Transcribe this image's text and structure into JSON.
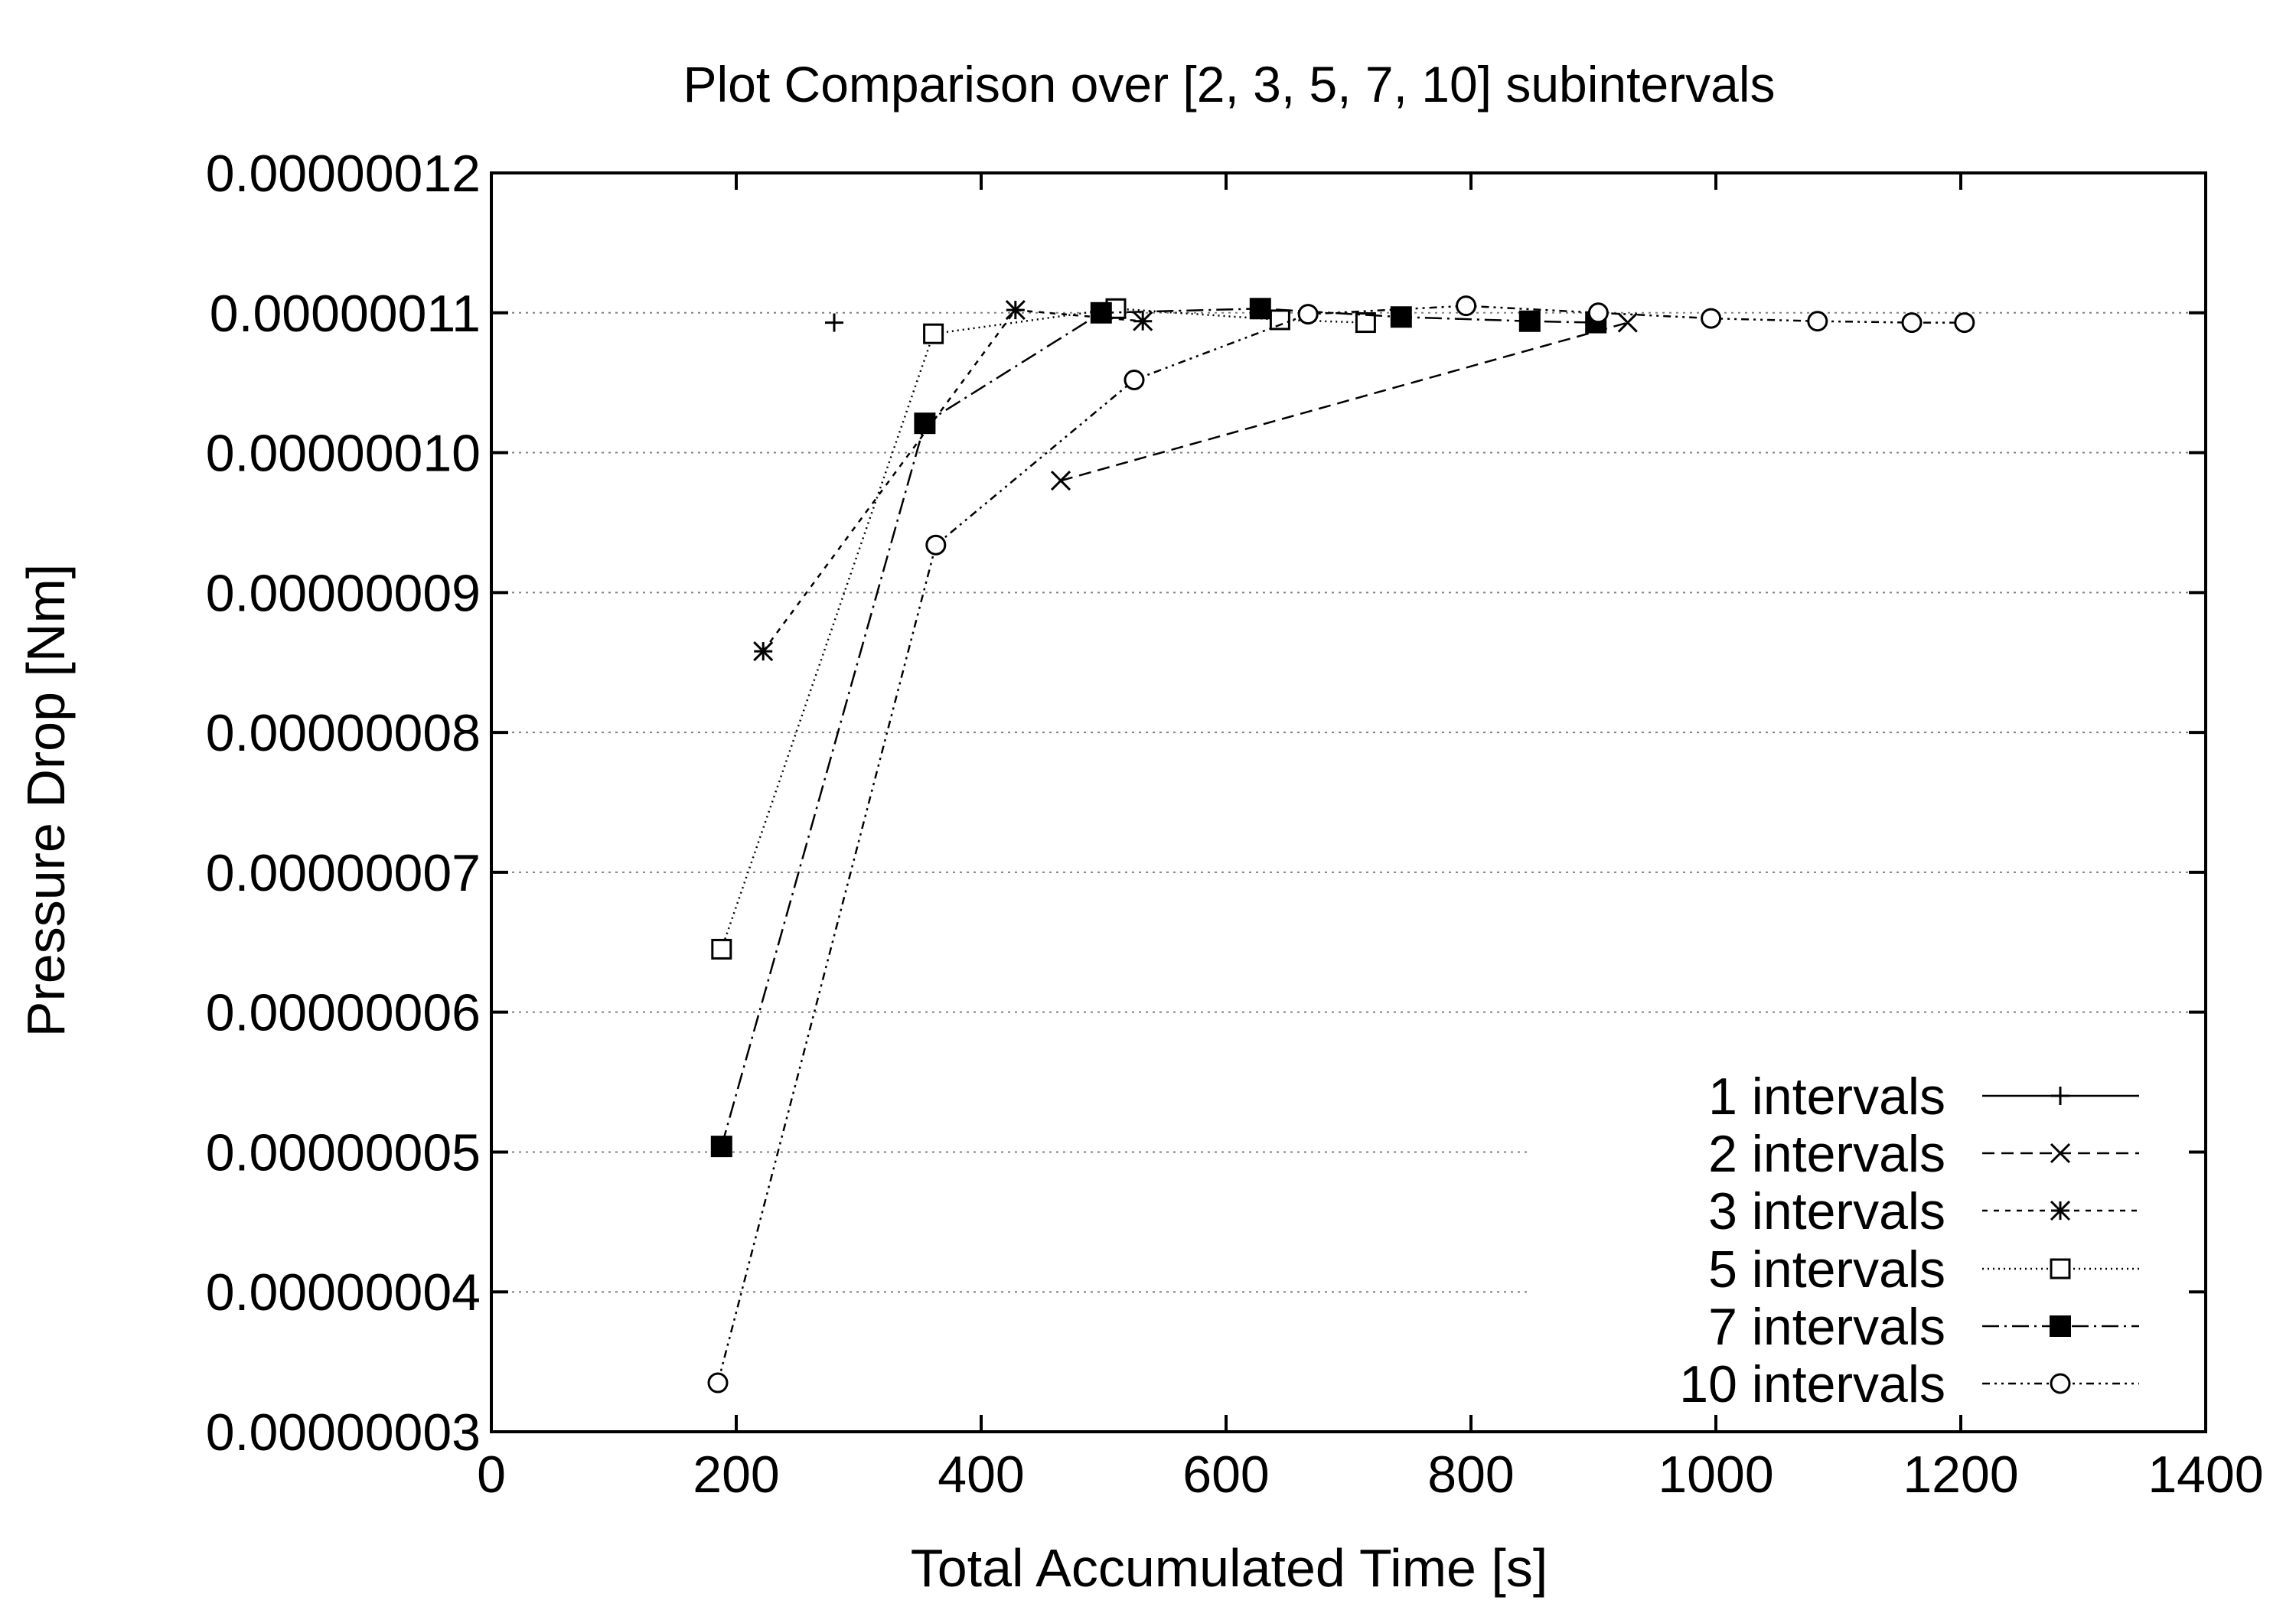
{
  "chart_data": {
    "type": "line",
    "title": "Plot Comparison over [2, 3, 5, 7, 10] subintervals",
    "xlabel": "Total Accumulated Time [s]",
    "ylabel": "Pressure Drop [Nm]",
    "xlim": [
      0,
      1400
    ],
    "ylim": [
      3e-08,
      1.2e-07
    ],
    "x_ticks": [
      0,
      200,
      400,
      600,
      800,
      1000,
      1200,
      1400
    ],
    "x_tick_labels": [
      "0",
      "200",
      "400",
      "600",
      "800",
      "1000",
      "1200",
      "1400"
    ],
    "y_ticks": [
      3e-08,
      4e-08,
      5e-08,
      6e-08,
      7e-08,
      8e-08,
      9e-08,
      1e-07,
      1.1e-07,
      1.2e-07
    ],
    "y_tick_labels": [
      "0.00000003",
      "0.00000004",
      "0.00000005",
      "0.00000006",
      "0.00000007",
      "0.00000008",
      "0.00000009",
      "0.00000010",
      "0.00000011",
      "0.00000012"
    ],
    "grid": true,
    "legend_position": "bottom-right",
    "series": [
      {
        "name": "1 intervals",
        "marker": "plus",
        "line": "solid",
        "points": [
          [
            280,
            1.093e-07
          ]
        ]
      },
      {
        "name": "2 intervals",
        "marker": "cross",
        "line": "dashed",
        "points": [
          [
            465,
            9.8e-08
          ],
          [
            928,
            1.093e-07
          ]
        ]
      },
      {
        "name": "3 intervals",
        "marker": "star",
        "line": "short-dashed",
        "points": [
          [
            222,
            8.58e-08
          ],
          [
            428,
            1.102e-07
          ],
          [
            532,
            1.094e-07
          ]
        ]
      },
      {
        "name": "5 intervals",
        "marker": "open-square",
        "line": "dotted",
        "points": [
          [
            188,
            6.45e-08
          ],
          [
            361,
            1.085e-07
          ],
          [
            510,
            1.103e-07
          ],
          [
            644,
            1.095e-07
          ],
          [
            714,
            1.093e-07
          ]
        ]
      },
      {
        "name": "7 intervals",
        "marker": "filled-square",
        "line": "dash-dot",
        "points": [
          [
            188,
            5.04e-08
          ],
          [
            354,
            1.021e-07
          ],
          [
            498,
            1.1e-07
          ],
          [
            628,
            1.103e-07
          ],
          [
            743,
            1.097e-07
          ],
          [
            848,
            1.094e-07
          ],
          [
            902,
            1.093e-07
          ]
        ]
      },
      {
        "name": "10 intervals",
        "marker": "open-circle",
        "line": "dash-dot-dot",
        "points": [
          [
            185,
            3.35e-08
          ],
          [
            363,
            9.34e-08
          ],
          [
            525,
            1.052e-07
          ],
          [
            667,
            1.099e-07
          ],
          [
            796,
            1.105e-07
          ],
          [
            904,
            1.1e-07
          ],
          [
            996,
            1.096e-07
          ],
          [
            1083,
            1.094e-07
          ],
          [
            1160,
            1.093e-07
          ],
          [
            1203,
            1.093e-07
          ]
        ]
      }
    ]
  }
}
